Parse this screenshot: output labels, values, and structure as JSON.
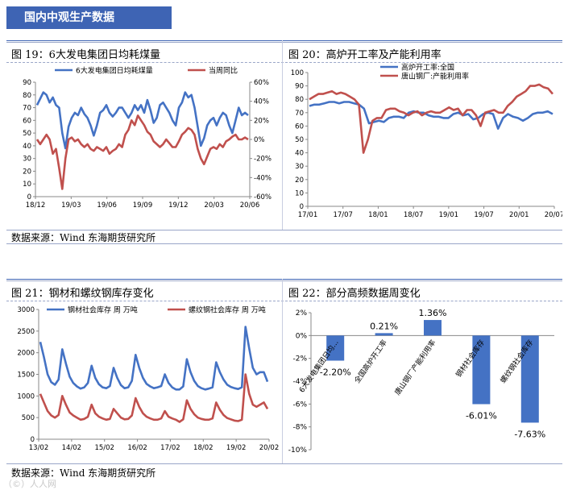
{
  "header": {
    "title": "国内中观生产数据"
  },
  "footer": {
    "source_left": "数据来源：Wind   东海期货研究所",
    "source_bottom": "数据来源：Wind   东海期货研究所",
    "watermark": "（©）人人网"
  },
  "chart_data": [
    {
      "id": "fig19",
      "type": "line",
      "title": "图 19：6大发电集团日均耗煤量",
      "series": [
        {
          "name": "6大发电集团日均耗煤量",
          "axis": "left",
          "color": "#4472c4",
          "values": [
            72,
            77,
            82,
            80,
            74,
            78,
            72,
            70,
            50,
            38,
            55,
            62,
            66,
            64,
            70,
            65,
            62,
            56,
            48,
            56,
            66,
            68,
            72,
            66,
            63,
            66,
            70,
            70,
            66,
            62,
            66,
            72,
            68,
            72,
            66,
            76,
            68,
            58,
            62,
            72,
            74,
            70,
            66,
            60,
            56,
            70,
            74,
            82,
            78,
            80,
            70,
            55,
            40,
            46,
            56,
            60,
            62,
            56,
            62,
            66,
            64,
            56,
            50,
            60,
            70,
            64,
            66,
            64
          ]
        },
        {
          "name": "当周同比",
          "axis": "right",
          "color": "#c0504d",
          "values": [
            0,
            -5,
            0,
            5,
            0,
            -15,
            -10,
            -30,
            -52,
            -20,
            0,
            2,
            -2,
            0,
            -5,
            -8,
            -5,
            -10,
            -12,
            -8,
            -10,
            -12,
            -8,
            -15,
            -12,
            -10,
            -5,
            -8,
            5,
            10,
            20,
            15,
            25,
            20,
            15,
            8,
            5,
            -2,
            -5,
            -8,
            -5,
            0,
            -4,
            -8,
            -8,
            -2,
            5,
            8,
            12,
            10,
            5,
            -10,
            -20,
            -26,
            -18,
            -10,
            -8,
            -10,
            -5,
            -8,
            -2,
            0,
            3,
            5,
            0,
            0,
            2,
            0
          ]
        }
      ],
      "x_tick_labels": [
        "18/12",
        "19/03",
        "19/06",
        "19/09",
        "19/12",
        "20/03",
        "20/06"
      ],
      "y_left": {
        "min": 0,
        "max": 90,
        "ticks": [
          "0",
          "10",
          "20",
          "30",
          "40",
          "50",
          "60",
          "70",
          "80",
          "90"
        ]
      },
      "y_right": {
        "min": -60,
        "max": 60,
        "ticks": [
          "-60%",
          "-40%",
          "-20%",
          "0%",
          "20%",
          "40%",
          "60%"
        ]
      }
    },
    {
      "id": "fig20",
      "type": "line",
      "title": "图 20：高炉开工率及产能利用率",
      "series": [
        {
          "name": "高炉开工率:全国",
          "color": "#4472c4",
          "values": [
            75,
            76,
            76,
            77,
            78,
            78,
            77,
            78,
            78,
            77,
            76,
            73,
            62,
            63,
            64,
            63,
            66,
            67,
            67,
            66,
            70,
            71,
            70,
            70,
            68,
            67,
            67,
            66,
            66,
            69,
            70,
            68,
            69,
            65,
            66,
            69,
            70,
            69,
            58,
            66,
            69,
            67,
            66,
            64,
            66,
            69,
            70,
            70,
            71,
            69
          ]
        },
        {
          "name": "唐山钢厂:产能利用率",
          "color": "#c0504d",
          "values": [
            80,
            82,
            84,
            84,
            85,
            86,
            84,
            85,
            84,
            82,
            80,
            76,
            40,
            50,
            64,
            66,
            66,
            72,
            73,
            73,
            71,
            70,
            68,
            70,
            71,
            68,
            70,
            71,
            70,
            70,
            72,
            74,
            72,
            73,
            68,
            72,
            72,
            68,
            60,
            70,
            71,
            72,
            70,
            70,
            75,
            78,
            82,
            84,
            86,
            90,
            90,
            91,
            89,
            88,
            84
          ]
        }
      ],
      "x_tick_labels": [
        "17/01",
        "17/07",
        "18/01",
        "18/07",
        "19/01",
        "19/07",
        "20/01",
        "20/07"
      ],
      "y_left": {
        "min": 0,
        "max": 100,
        "ticks": [
          "0",
          "10",
          "20",
          "30",
          "40",
          "50",
          "60",
          "70",
          "80",
          "90",
          "100"
        ]
      }
    },
    {
      "id": "fig21",
      "type": "line",
      "title": "图 21：钢材和螺纹钢库存变化",
      "series": [
        {
          "name": "钢材社会库存 周 万吨",
          "color": "#4472c4",
          "values": [
            2250,
            1900,
            1500,
            1320,
            1260,
            1380,
            2080,
            1750,
            1450,
            1300,
            1220,
            1170,
            1200,
            1300,
            1700,
            1420,
            1270,
            1200,
            1180,
            1230,
            1650,
            1420,
            1250,
            1180,
            1200,
            1350,
            1950,
            1650,
            1420,
            1280,
            1220,
            1180,
            1200,
            1230,
            1500,
            1300,
            1200,
            1150,
            1150,
            1220,
            1850,
            1550,
            1350,
            1230,
            1180,
            1150,
            1170,
            1200,
            1780,
            1550,
            1380,
            1260,
            1210,
            1180,
            1160,
            1200,
            2600,
            2100,
            1650,
            1500,
            1550,
            1550,
            1330
          ]
        },
        {
          "name": "螺纹钢社会库存 周 万吨",
          "color": "#c0504d",
          "values": [
            1050,
            850,
            650,
            550,
            500,
            560,
            1000,
            800,
            620,
            550,
            500,
            450,
            470,
            520,
            800,
            600,
            520,
            480,
            450,
            470,
            700,
            600,
            500,
            460,
            470,
            550,
            950,
            750,
            600,
            520,
            480,
            450,
            450,
            480,
            650,
            520,
            480,
            450,
            400,
            460,
            900,
            700,
            580,
            500,
            470,
            450,
            450,
            480,
            850,
            680,
            560,
            490,
            460,
            430,
            420,
            450,
            1500,
            1050,
            800,
            750,
            800,
            850,
            700
          ]
        }
      ],
      "x_tick_labels": [
        "13/02",
        "14/02",
        "15/02",
        "16/02",
        "17/02",
        "18/02",
        "19/02",
        "20/02"
      ],
      "y_left": {
        "min": 0,
        "max": 3000,
        "ticks": [
          "0",
          "500",
          "1000",
          "1500",
          "2000",
          "2500",
          "3000"
        ]
      }
    },
    {
      "id": "fig22",
      "type": "bar",
      "title": "图 22：部分高频数据周变化",
      "categories": [
        "6大发电集团日均...",
        "全国高炉开工率",
        "唐山钢厂产能利用率",
        "钢材社会库存",
        "螺纹钢社会库存"
      ],
      "values": [
        -2.2,
        0.21,
        1.36,
        -6.01,
        -7.63
      ],
      "value_labels": [
        "-2.20%",
        "0.21%",
        "1.36%",
        "-6.01%",
        "-7.63%"
      ],
      "y_left": {
        "min": -10,
        "max": 2,
        "ticks": [
          "2%",
          "0%",
          "-2%",
          "-4%",
          "-6%",
          "-8%",
          "-10%"
        ]
      },
      "color": "#4472c4"
    }
  ]
}
